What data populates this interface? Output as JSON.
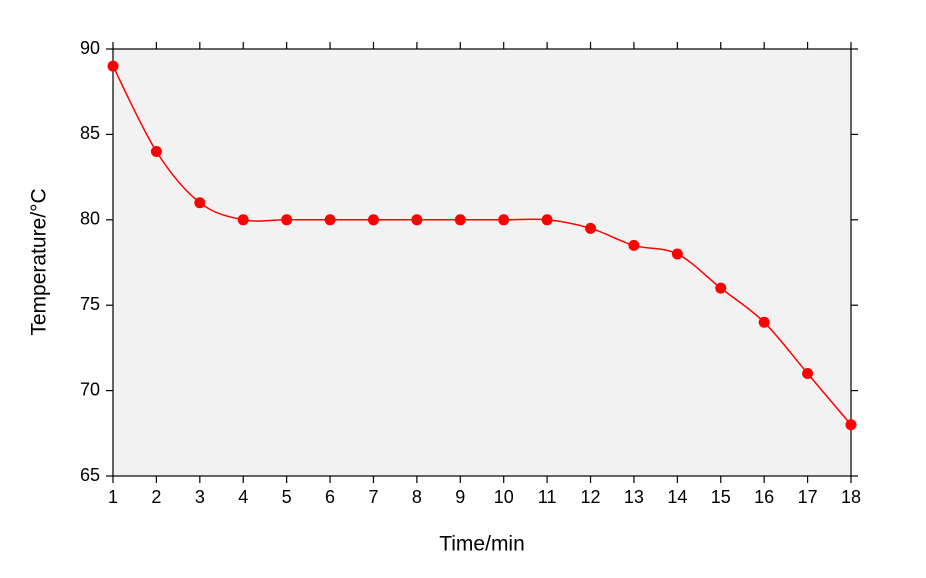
{
  "chart_data": {
    "type": "line",
    "x_label": "Time/min",
    "y_label": "Temperature/°C",
    "x": [
      1,
      2,
      3,
      4,
      5,
      6,
      7,
      8,
      9,
      10,
      11,
      12,
      13,
      14,
      15,
      16,
      17,
      18
    ],
    "series": [
      {
        "color": "#ff0000",
        "values": [
          89,
          84,
          81,
          80,
          80,
          80,
          80,
          80,
          80,
          80,
          80,
          79.5,
          78.5,
          78,
          76,
          74,
          71,
          68
        ]
      }
    ],
    "xlim": [
      1,
      18
    ],
    "xticks": [
      1,
      2,
      3,
      4,
      5,
      6,
      7,
      8,
      9,
      10,
      11,
      12,
      13,
      14,
      15,
      16,
      17,
      18
    ],
    "ylim": [
      65,
      90
    ],
    "yticks": [
      65,
      70,
      75,
      80,
      85,
      90
    ],
    "background": "#f2f2f2",
    "smooth": true
  }
}
